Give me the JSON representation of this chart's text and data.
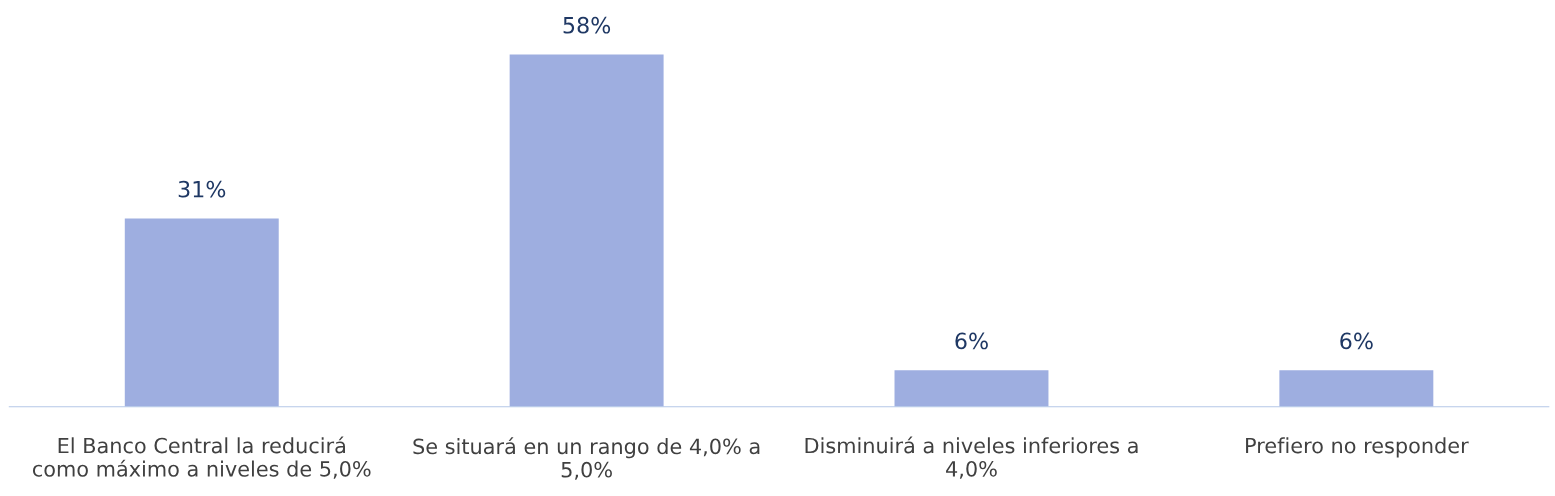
{
  "chart_data": {
    "type": "bar",
    "categories": [
      "El Banco Central la reducirá\ncomo máximo a niveles de 5,0%",
      "Se situará en un rango de 4,0% a\n5,0%",
      "Disminuirá a niveles inferiores a\n4,0%",
      "Prefiero no responder"
    ],
    "values": [
      31,
      58,
      6,
      6
    ],
    "value_labels": [
      "31%",
      "58%",
      "6%",
      "6%"
    ],
    "color": "#9eaee0",
    "grid": false,
    "legend": false
  }
}
